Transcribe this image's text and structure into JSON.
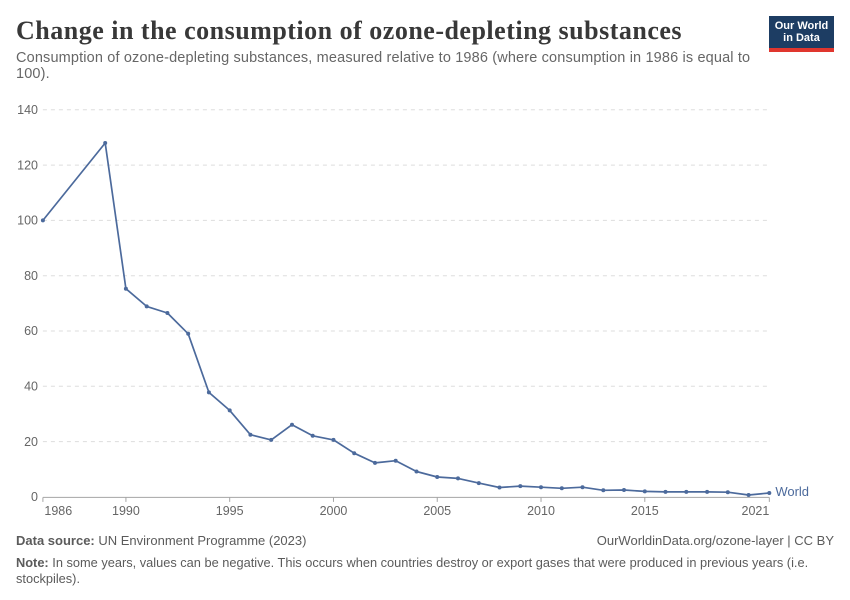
{
  "header": {
    "title": "Change in the consumption of ozone-depleting substances",
    "subtitle": "Consumption of ozone-depleting substances, measured relative to 1986 (where consumption in 1986 is equal to 100).",
    "logo_line1": "Our World",
    "logo_line2": "in Data"
  },
  "footer": {
    "data_source_label": "Data source:",
    "data_source_text": " UN Environment Programme (2023)",
    "credit": "OurWorldinData.org/ozone-layer | CC BY",
    "note_label": "Note:",
    "note_text": " In some years, values can be negative. This occurs when countries destroy or export gases that were produced in previous years (i.e. stockpiles)."
  },
  "chart_data": {
    "type": "line",
    "title": "Change in the consumption of ozone-depleting substances",
    "xlabel": "",
    "ylabel": "",
    "xlim": [
      1986,
      2021
    ],
    "ylim": [
      0,
      140
    ],
    "grid": true,
    "legend_position": "right-of-last-point",
    "x_ticks": [
      1986,
      1990,
      1995,
      2000,
      2005,
      2010,
      2015,
      2021
    ],
    "y_ticks": [
      0,
      20,
      40,
      60,
      80,
      100,
      120,
      140
    ],
    "series": [
      {
        "name": "World",
        "color": "#4c6a9c",
        "x": [
          1986,
          1989,
          1990,
          1991,
          1992,
          1993,
          1994,
          1995,
          1996,
          1997,
          1998,
          1999,
          2000,
          2001,
          2002,
          2003,
          2004,
          2005,
          2006,
          2007,
          2008,
          2009,
          2010,
          2011,
          2012,
          2013,
          2014,
          2015,
          2016,
          2017,
          2018,
          2019,
          2020,
          2021
        ],
        "values": [
          100,
          128,
          75.3,
          68.9,
          66.5,
          59,
          37.8,
          31.3,
          22.5,
          20.6,
          26.1,
          22.1,
          20.6,
          15.8,
          12.3,
          13.1,
          9.2,
          7.2,
          6.7,
          5,
          3.4,
          3.9,
          3.5,
          3.1,
          3.5,
          2.4,
          2.5,
          2,
          1.8,
          1.8,
          1.8,
          1.7,
          0.7,
          1.4
        ]
      }
    ]
  },
  "style": {
    "accent_navy": "#1d3d63",
    "accent_red": "#e0362e",
    "line_blue": "#4c6a9c"
  }
}
